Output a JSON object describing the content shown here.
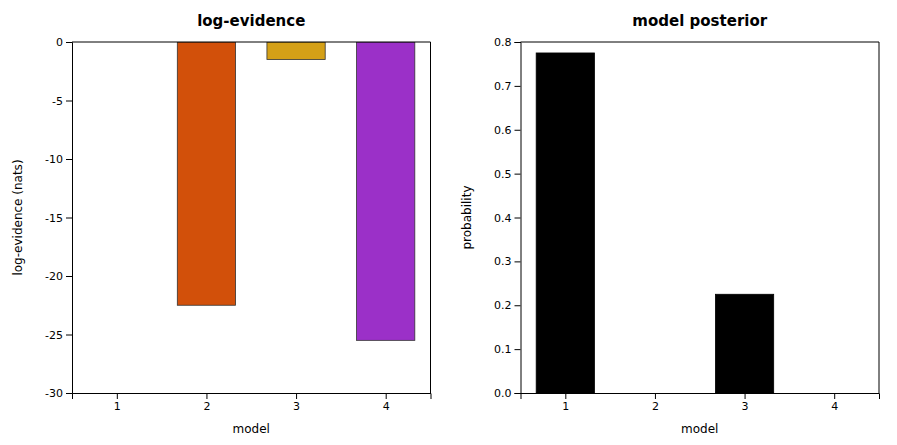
{
  "chart_data": [
    {
      "type": "bar",
      "title": "log-evidence",
      "xlabel": "model",
      "ylabel": "log-evidence (nats)",
      "x": [
        1,
        2,
        3,
        4
      ],
      "values": [
        0,
        -22.5,
        -1.5,
        -25.5
      ],
      "colors": [
        "#ffffff",
        "#d2500a",
        "#d4a017",
        "#9b30c8"
      ],
      "xlim": [
        0.5,
        4.5
      ],
      "ylim": [
        -30,
        0
      ],
      "xticks": [
        1,
        2,
        3,
        4
      ],
      "yticks": [
        0,
        -5,
        -10,
        -15,
        -20,
        -25,
        -30
      ]
    },
    {
      "type": "bar",
      "title": "model posterior",
      "xlabel": "model",
      "ylabel": "probability",
      "x": [
        1,
        2,
        3,
        4
      ],
      "values": [
        0.775,
        0,
        0.225,
        0
      ],
      "color": "#000000",
      "xlim": [
        0.5,
        4.5
      ],
      "ylim": [
        0,
        0.8
      ],
      "xticks": [
        1,
        2,
        3,
        4
      ],
      "yticks": [
        {
          "value": 0,
          "label": "0.0"
        },
        0.1,
        0.2,
        0.3,
        0.4,
        0.5,
        0.6,
        0.7,
        0.8
      ]
    }
  ]
}
